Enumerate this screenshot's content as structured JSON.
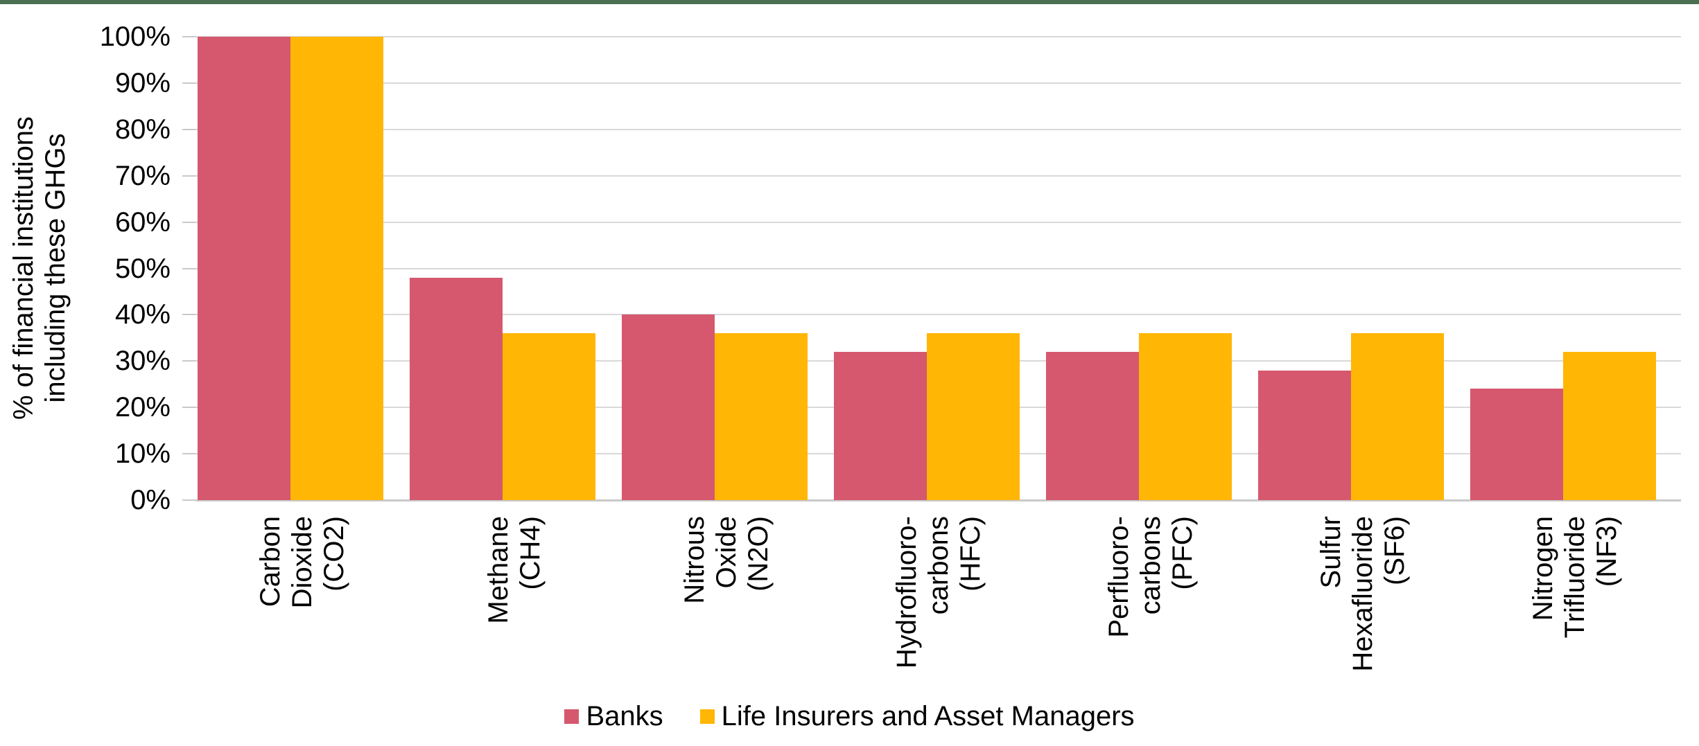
{
  "chart_data": {
    "type": "bar",
    "title": "",
    "ylabel": "% of financial institutions including these GHGs",
    "ylabel_lines": [
      "% of financial institutions",
      "including these GHGs"
    ],
    "xlabel": "",
    "ylim": [
      0,
      100
    ],
    "y_tick_labels": [
      "100%",
      "90%",
      "80%",
      "70%",
      "60%",
      "50%",
      "40%",
      "30%",
      "20%",
      "10%",
      "0%"
    ],
    "grid": "horizontal",
    "legend_position": "bottom-center",
    "categories": [
      [
        "Carbon",
        "Dioxide",
        "(CO2)"
      ],
      [
        "Methane",
        "(CH4)"
      ],
      [
        "Nitrous",
        "Oxide",
        "(N2O)"
      ],
      [
        "Hydrofluoro-",
        "carbons",
        "(HFC)"
      ],
      [
        "Perfluoro-",
        "carbons",
        "(PFC)"
      ],
      [
        "Sulfur",
        "Hexafluoride",
        "(SF6)"
      ],
      [
        "Nitrogen",
        "Trifluoride",
        "(NF3)"
      ]
    ],
    "series": [
      {
        "name": "Banks",
        "color": "#d6586e",
        "values": [
          100,
          48,
          40,
          32,
          32,
          28,
          24
        ]
      },
      {
        "name": "Life Insurers and Asset Managers",
        "color": "#ffb605",
        "values": [
          100,
          36,
          36,
          36,
          36,
          36,
          32
        ]
      }
    ]
  },
  "colors": {
    "top_border": "#4a7051",
    "gridline": "#d9d9d9",
    "axis_line": "#c9c9c9",
    "text": "#000000",
    "background": "#ffffff"
  }
}
